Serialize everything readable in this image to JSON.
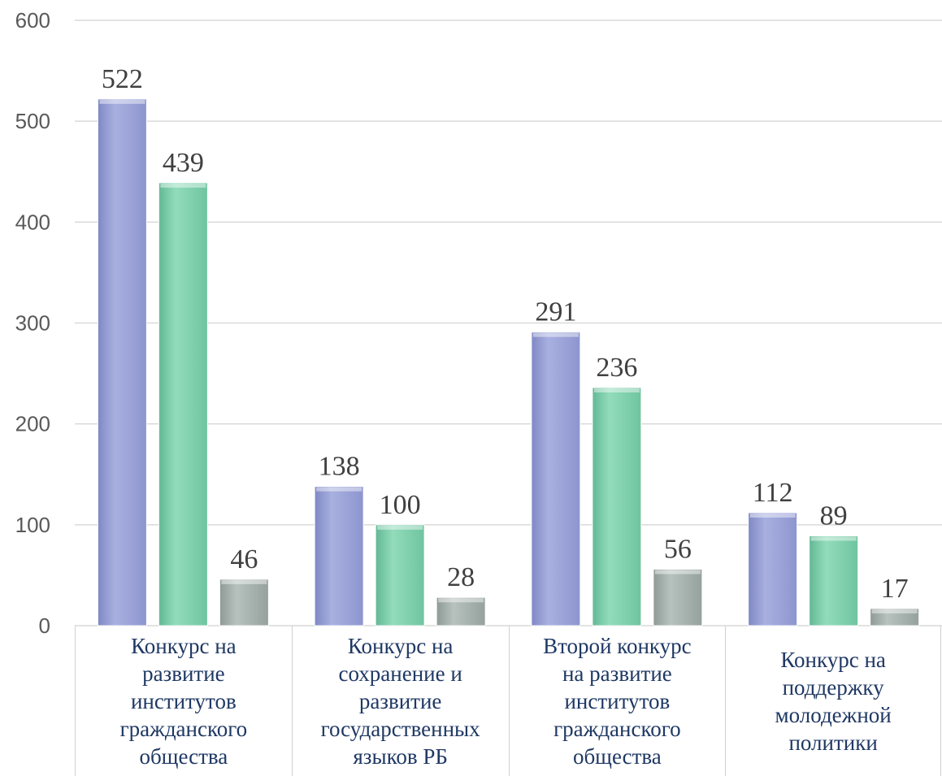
{
  "chart_data": {
    "type": "bar",
    "categories": [
      "Конкурс на\nразвитие\nинститутов\nгражданского\nобщества",
      "Конкурс на\nсохранение и\nразвитие\nгосударственных\nязыков РБ",
      "Второй конкурс\nна развитие\nинститутов\nгражданского\nобщества",
      "Конкурс на\nподдержку\nмолодежной\nполитики"
    ],
    "series": [
      {
        "values": [
          522,
          138,
          291,
          112
        ],
        "color": "#a8b0e0"
      },
      {
        "values": [
          439,
          100,
          236,
          89
        ],
        "color": "#92dcbb"
      },
      {
        "values": [
          46,
          28,
          56,
          17
        ],
        "color": "#b7c2be"
      }
    ],
    "ylim": [
      0,
      600
    ],
    "yticks": [
      0,
      100,
      200,
      300,
      400,
      500,
      600
    ],
    "grid": true,
    "legend": "none"
  }
}
